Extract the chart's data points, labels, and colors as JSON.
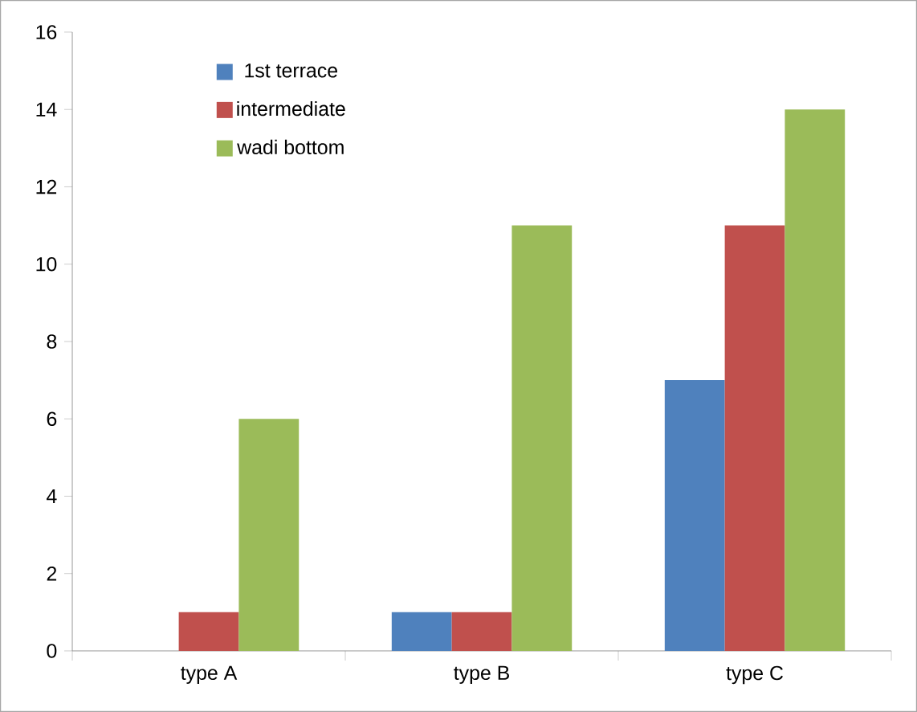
{
  "chart_data": {
    "type": "bar",
    "categories": [
      "type A",
      "type B",
      "type C"
    ],
    "series": [
      {
        "name": "1st terrace",
        "color": "#4f81bd",
        "values": [
          0,
          1,
          7
        ]
      },
      {
        "name": "intermediate",
        "color": "#c0504d",
        "values": [
          1,
          1,
          11
        ]
      },
      {
        "name": "wadi bottom",
        "color": "#9bbb59",
        "values": [
          6,
          11,
          14
        ]
      }
    ],
    "ylim": [
      0,
      16
    ],
    "yticks": [
      0,
      2,
      4,
      6,
      8,
      10,
      12,
      14,
      16
    ],
    "legend": "top left"
  }
}
